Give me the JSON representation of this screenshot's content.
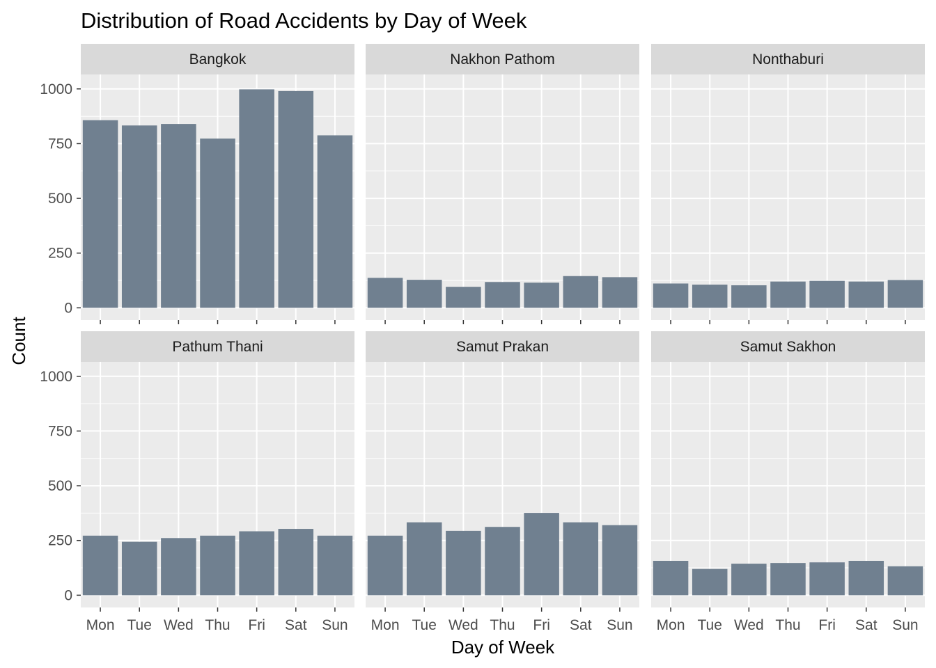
{
  "chart_data": {
    "type": "bar",
    "title": "Distribution of Road Accidents by Day of Week",
    "xlabel": "Day of Week",
    "ylabel": "Count",
    "categories": [
      "Mon",
      "Tue",
      "Wed",
      "Thu",
      "Fri",
      "Sat",
      "Sun"
    ],
    "ylim": [
      0,
      1000
    ],
    "yticks": [
      0,
      250,
      500,
      750,
      1000
    ],
    "grid": true,
    "legend": "none",
    "bar_color": "#708090",
    "panel_background": "#ebebeb",
    "strip_background": "#d9d9d9",
    "facets": [
      {
        "name": "Bangkok",
        "values": [
          857,
          833,
          840,
          773,
          998,
          990,
          788
        ]
      },
      {
        "name": "Nakhon Pathom",
        "values": [
          137,
          128,
          96,
          118,
          115,
          145,
          140
        ]
      },
      {
        "name": "Nonthaburi",
        "values": [
          111,
          106,
          103,
          120,
          123,
          120,
          127
        ]
      },
      {
        "name": "Pathum Thani",
        "values": [
          272,
          244,
          261,
          272,
          292,
          303,
          272
        ]
      },
      {
        "name": "Samut Prakan",
        "values": [
          272,
          333,
          294,
          312,
          376,
          333,
          320
        ]
      },
      {
        "name": "Samut Sakhon",
        "values": [
          157,
          120,
          144,
          147,
          150,
          157,
          132
        ]
      }
    ]
  }
}
